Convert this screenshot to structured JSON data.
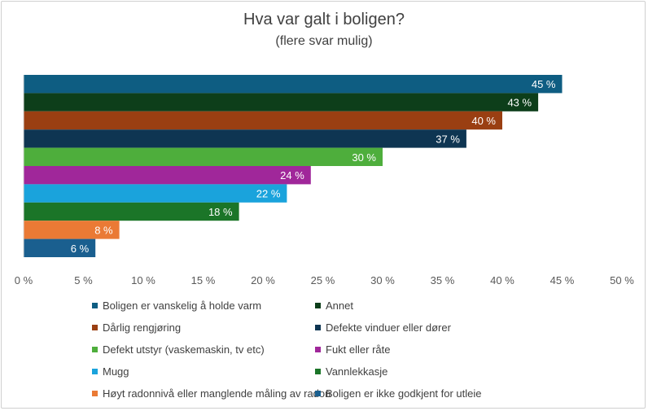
{
  "chart_data": {
    "type": "bar",
    "orientation": "horizontal",
    "title": "Hva var galt i boligen?",
    "subtitle": "(flere svar mulig)",
    "xlabel": "",
    "ylabel": "",
    "xlim": [
      0,
      50
    ],
    "x_ticks": [
      "0 %",
      "5 %",
      "10 %",
      "15 %",
      "20 %",
      "25 %",
      "30 %",
      "35 %",
      "40 %",
      "45 %",
      "50 %"
    ],
    "grid": false,
    "legend_position": "bottom",
    "series": [
      {
        "name": "Boligen er vanskelig å holde varm",
        "value": 45,
        "label": "45 %",
        "color": "#0e5d82"
      },
      {
        "name": "Annet",
        "value": 43,
        "label": "43 %",
        "color": "#0d3e1a"
      },
      {
        "name": "Dårlig rengjøring",
        "value": 40,
        "label": "40 %",
        "color": "#9a3f12"
      },
      {
        "name": "Defekte vinduer eller dører",
        "value": 37,
        "label": "37 %",
        "color": "#0e3552"
      },
      {
        "name": "Defekt utstyr (vaskemaskin, tv etc)",
        "value": 30,
        "label": "30 %",
        "color": "#4eae3c"
      },
      {
        "name": "Fukt eller råte",
        "value": 24,
        "label": "24 %",
        "color": "#a0279a"
      },
      {
        "name": "Mugg",
        "value": 22,
        "label": "22 %",
        "color": "#1aa3dc"
      },
      {
        "name": "Vannlekkasje",
        "value": 18,
        "label": "18 %",
        "color": "#1b7528"
      },
      {
        "name": "Høyt radonnivå eller manglende måling av radon",
        "value": 8,
        "label": "8 %",
        "color": "#ea7a35"
      },
      {
        "name": "Boligen er ikke godkjent for utleie",
        "value": 6,
        "label": "6 %",
        "color": "#1a5f8f"
      }
    ]
  }
}
